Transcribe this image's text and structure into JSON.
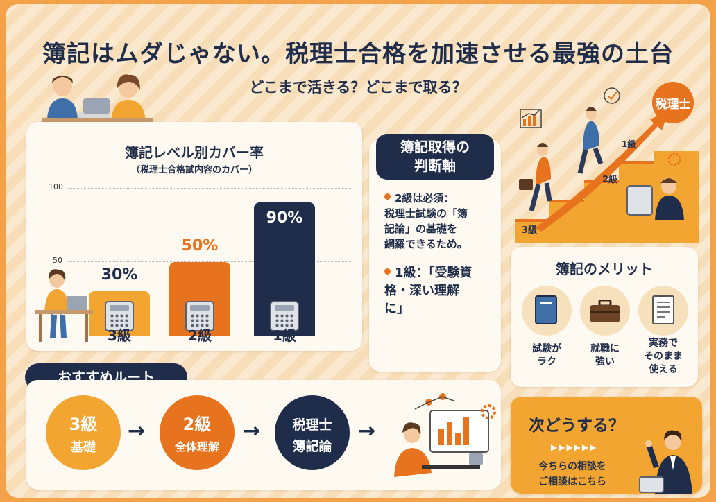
{
  "header": {
    "title": "簿記はムダじゃない。税理士合格を加速させる最強の土台",
    "subtitle": "どこまで活きる？どこまで取る？"
  },
  "chart_data": {
    "type": "bar",
    "title": "簿記レベル別カバー率",
    "subtitle": "（税理士合格試内容のカバー）",
    "categories": [
      "3級",
      "2級",
      "1級"
    ],
    "values": [
      30,
      50,
      90
    ],
    "value_labels": [
      "30%",
      "50%",
      "90%"
    ],
    "y_ticks": [
      "100",
      "50"
    ],
    "ylim": [
      0,
      100
    ],
    "colors": [
      "#f2a531",
      "#e8731e",
      "#1f2d4a"
    ],
    "label_colors": [
      "#1f2d4a",
      "#e8731e",
      "#ffffff"
    ]
  },
  "judgment": {
    "title_line1": "簿記取得の",
    "title_line2": "判断軸",
    "items": [
      {
        "lines": [
          "2級は必須：",
          "税理士試験の「簿",
          "記論」の基礎を",
          "網羅できるため。"
        ]
      },
      {
        "lines": [
          "1級：「受験資",
          "格・深い理解",
          "に」"
        ]
      }
    ]
  },
  "stairs": {
    "goal_label": "税理士",
    "step_labels": [
      "1級",
      "2級",
      "3級"
    ]
  },
  "merits": {
    "title": "簿記のメリット",
    "items": [
      {
        "icon": "book-icon",
        "lines": [
          "試験が",
          "ラク"
        ]
      },
      {
        "icon": "briefcase-icon",
        "lines": [
          "就職に",
          "強い"
        ]
      },
      {
        "icon": "document-icon",
        "lines": [
          "実務で",
          "そのまま",
          "使える"
        ]
      }
    ]
  },
  "route": {
    "title": "おすすめルート",
    "steps": [
      {
        "line1": "3級",
        "line2": "基礎",
        "color": "#f2a531"
      },
      {
        "line1": "2級",
        "line2": "全体理解",
        "color": "#e8731e"
      },
      {
        "line1": "税理士",
        "line2": "簿記論",
        "color": "#1f2d4a"
      }
    ],
    "arrow": "→"
  },
  "cta": {
    "title": "次どうする？",
    "arrows": "▶▶▶▶▶▶",
    "line1": "今ちらの相談を",
    "line2": "ご相談はこちら"
  }
}
